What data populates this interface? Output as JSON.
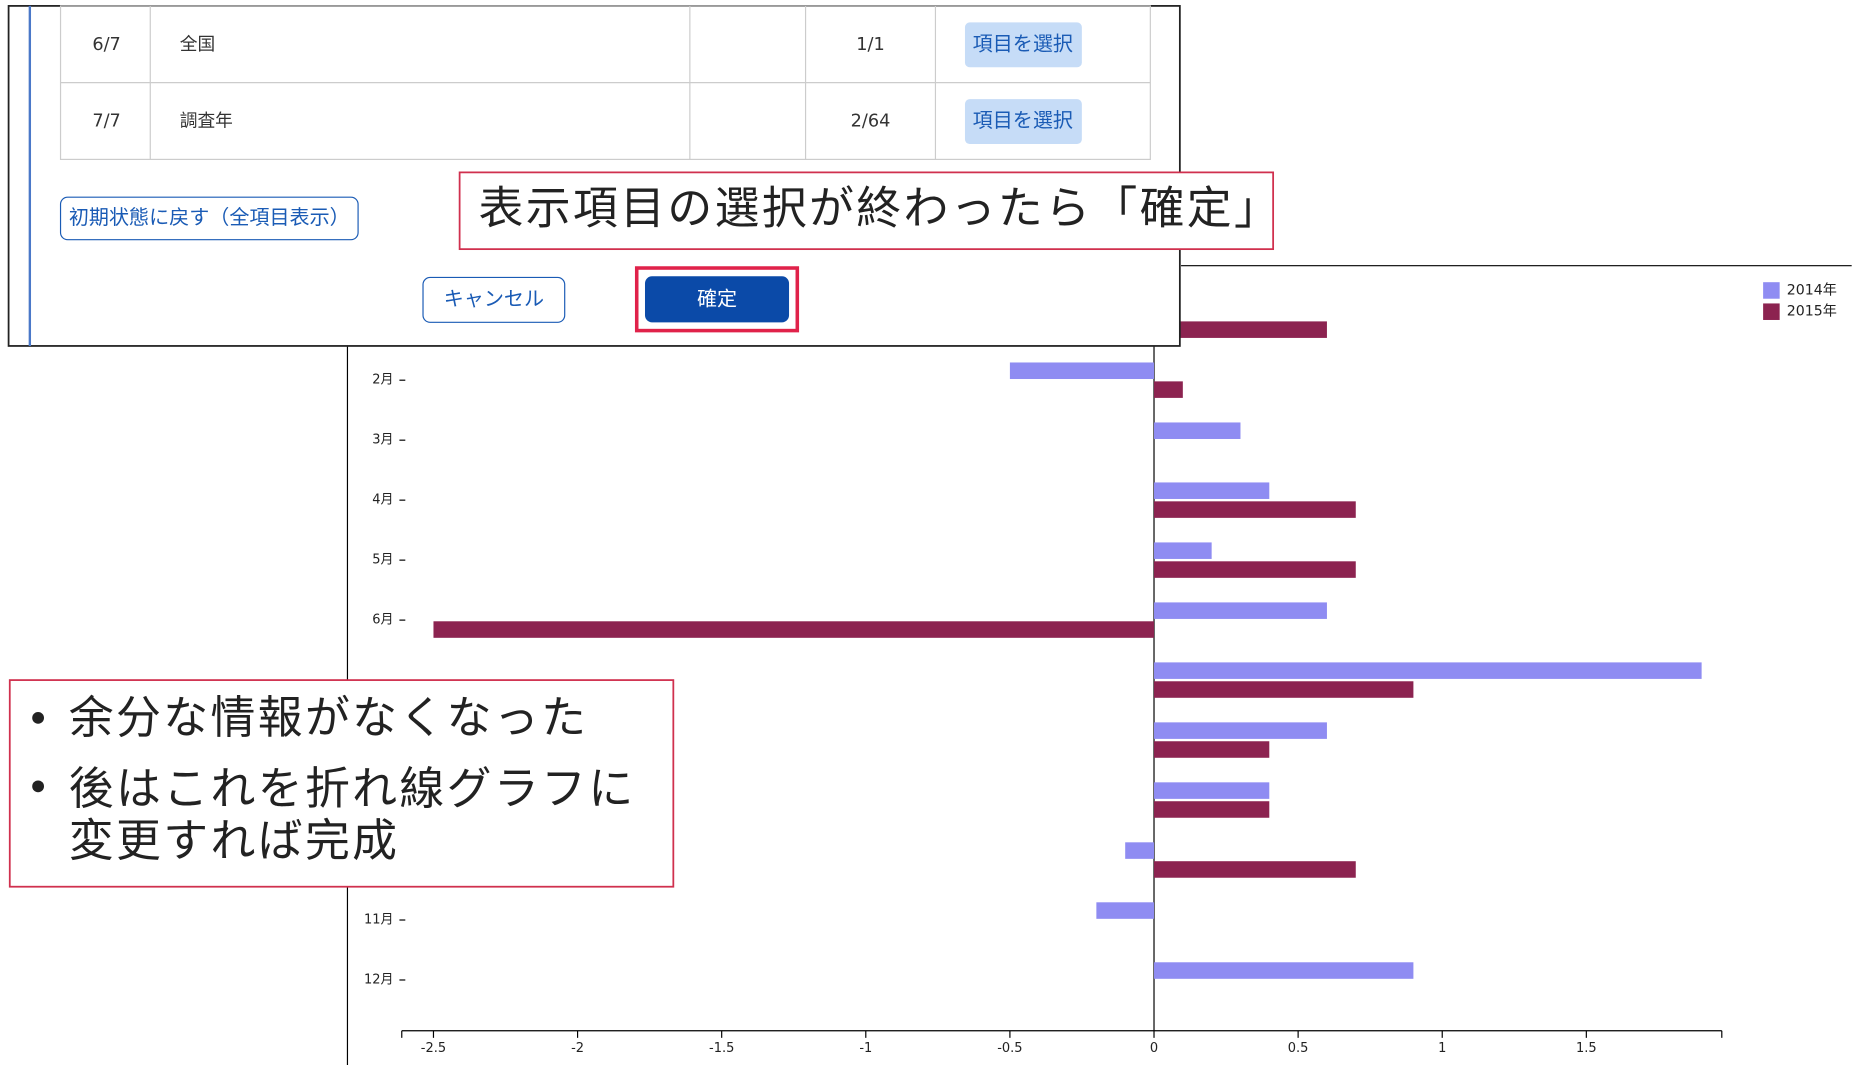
{
  "chart_data": {
    "type": "bar",
    "orientation": "horizontal",
    "categories": [
      null,
      "2月",
      "3月",
      "4月",
      "5月",
      "6月",
      null,
      null,
      null,
      null,
      "11月",
      "12月"
    ],
    "series": [
      {
        "name": "2014年",
        "color": "#8f8cf2",
        "values": [
          null,
          -0.5,
          0.3,
          0.4,
          0.2,
          0.6,
          1.9,
          0.6,
          0.4,
          -0.1,
          -0.2,
          0.9
        ]
      },
      {
        "name": "2015年",
        "color": "#8c2350",
        "values": [
          0.6,
          0.1,
          0,
          0.7,
          0.7,
          -2.5,
          0.9,
          0.4,
          0.4,
          0.7,
          0,
          0
        ]
      }
    ],
    "xlim": [
      -2.61,
      1.97
    ],
    "xticks": [
      -2.5,
      -2,
      -1.5,
      -1,
      -0.5,
      0,
      0.5,
      1,
      1.5
    ],
    "legend": "upper right"
  },
  "dialog": {
    "rows": [
      [
        "6/7",
        "全国",
        "1/1",
        "項目を選択"
      ],
      [
        "7/7",
        "調査年",
        "2/64",
        "項目を選択"
      ]
    ],
    "reset_button": "初期状態に戻す（全項目表示）",
    "cancel_button": "キャンセル",
    "confirm_button": "確定"
  },
  "callouts": {
    "top": "表示項目の選択が終わったら「確定」",
    "bullets": [
      "余分な情報がなくなった",
      "後はこれを折れ線グラフに変更すれば完成"
    ]
  }
}
